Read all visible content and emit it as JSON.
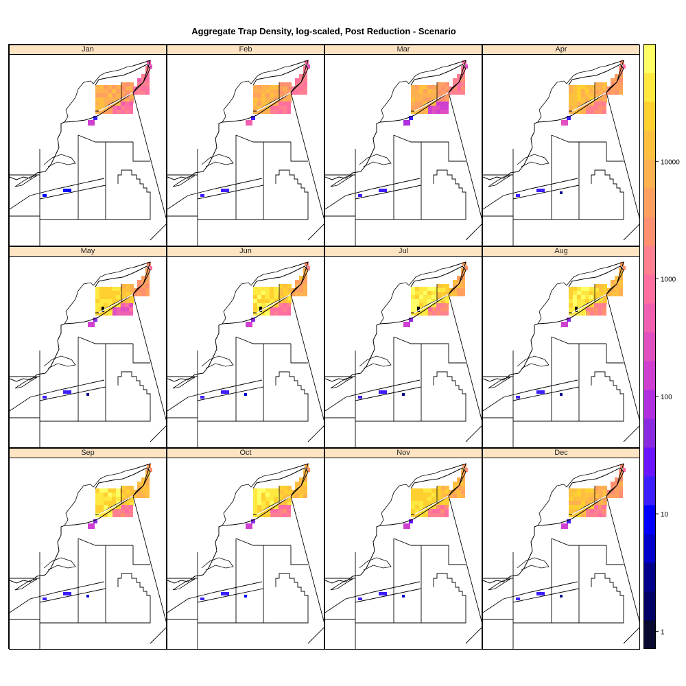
{
  "title": "Aggregate Trap Density, log-scaled, Post Reduction - Scenario",
  "panels": [
    "Jan",
    "Feb",
    "Mar",
    "Apr",
    "May",
    "Jun",
    "Jul",
    "Aug",
    "Sep",
    "Oct",
    "Nov",
    "Dec"
  ],
  "legend": {
    "ticks": [
      {
        "value": 1,
        "label": "1"
      },
      {
        "value": 10,
        "label": "10"
      },
      {
        "value": 100,
        "label": "100"
      },
      {
        "value": 1000,
        "label": "1000"
      },
      {
        "value": 10000,
        "label": "10000"
      }
    ],
    "log_min": -0.15,
    "log_max": 5.0,
    "colors": [
      "#0a0a30",
      "#000066",
      "#00008b",
      "#0000cd",
      "#0000ff",
      "#3b1fff",
      "#6a14ff",
      "#8a2be2",
      "#b030e0",
      "#d040d0",
      "#e050c0",
      "#f060b0",
      "#ff70a0",
      "#ff8090",
      "#ff9070",
      "#ffa060",
      "#ffb050",
      "#ffc040",
      "#ffd030",
      "#ffe840",
      "#ffff66"
    ]
  },
  "density": {
    "months": [
      {
        "coastal": 3.9,
        "interior": 3.6,
        "south": 2.9,
        "east": 3.0,
        "triangle": 2.2,
        "small": 1.3,
        "band": 1.0,
        "dot": null
      },
      {
        "coastal": 3.9,
        "interior": 3.6,
        "south": 3.0,
        "east": 3.1,
        "triangle": 2.6,
        "small": 1.3,
        "band": 1.1,
        "dot": null
      },
      {
        "coastal": 3.9,
        "interior": 3.6,
        "south": 2.3,
        "east": 3.1,
        "triangle": 2.0,
        "small": 1.3,
        "band": 1.1,
        "dot": null
      },
      {
        "coastal": 4.1,
        "interior": 3.9,
        "south": 3.3,
        "east": 3.6,
        "triangle": 2.5,
        "small": 1.3,
        "band": 1.1,
        "dot": 0.5
      },
      {
        "coastal": 4.5,
        "interior": 4.1,
        "south": 2.6,
        "east": 3.6,
        "triangle": 2.2,
        "small": 1.6,
        "band": 1.2,
        "dot": 0.5
      },
      {
        "coastal": 4.6,
        "interior": 4.3,
        "south": 3.1,
        "east": 3.8,
        "triangle": 2.2,
        "small": 1.6,
        "band": 1.2,
        "dot": 0.6
      },
      {
        "coastal": 4.7,
        "interior": 4.4,
        "south": 3.2,
        "east": 3.9,
        "triangle": 2.2,
        "small": 1.6,
        "band": 1.3,
        "dot": 0.5
      },
      {
        "coastal": 4.6,
        "interior": 4.3,
        "south": 3.3,
        "east": 4.0,
        "triangle": 2.2,
        "small": 1.6,
        "band": 1.2,
        "dot": 0.5
      },
      {
        "coastal": 4.6,
        "interior": 4.3,
        "south": 3.1,
        "east": 4.0,
        "triangle": 2.2,
        "small": 1.6,
        "band": 1.2,
        "dot": 0.6
      },
      {
        "coastal": 4.6,
        "interior": 4.3,
        "south": 3.1,
        "east": 4.1,
        "triangle": 2.2,
        "small": 1.6,
        "band": 1.2,
        "dot": 0.9
      },
      {
        "coastal": 4.5,
        "interior": 4.2,
        "south": 3.1,
        "east": 3.9,
        "triangle": 2.2,
        "small": 1.5,
        "band": 1.2,
        "dot": 0.6
      },
      {
        "coastal": 4.2,
        "interior": 3.9,
        "south": 3.2,
        "east": 3.6,
        "triangle": 2.2,
        "small": 1.3,
        "band": 1.1,
        "dot": 0.5
      }
    ]
  }
}
